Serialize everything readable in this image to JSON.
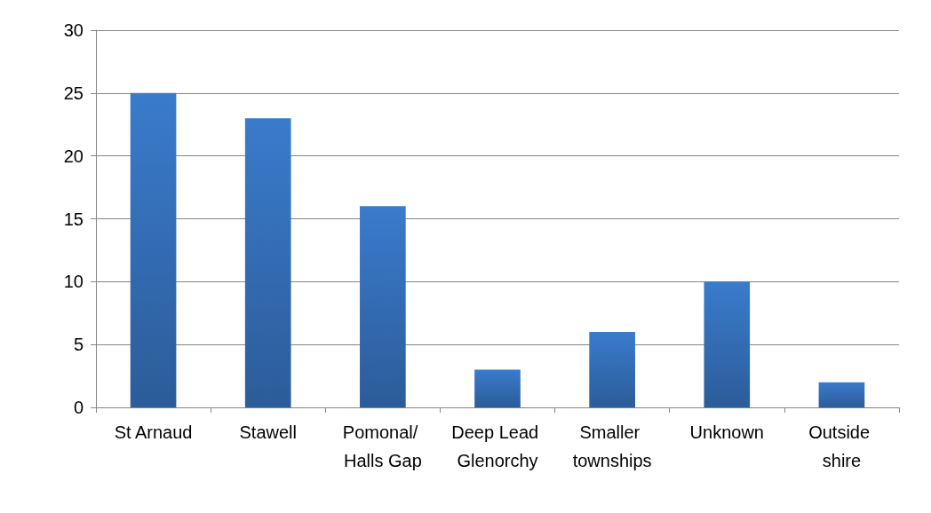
{
  "chart_data": {
    "type": "bar",
    "categories": [
      "St Arnaud",
      "Stawell",
      "Pomonal/ Halls Gap",
      "Deep Lead Glenorchy",
      "Smaller townships",
      "Unknown",
      "Outside shire"
    ],
    "values": [
      25,
      23,
      16,
      3,
      6,
      10,
      2
    ],
    "color": "#3a7bcc",
    "ylim": [
      0,
      30
    ],
    "yticks": [
      0,
      5,
      10,
      15,
      20,
      25,
      30
    ],
    "grid": "y"
  }
}
